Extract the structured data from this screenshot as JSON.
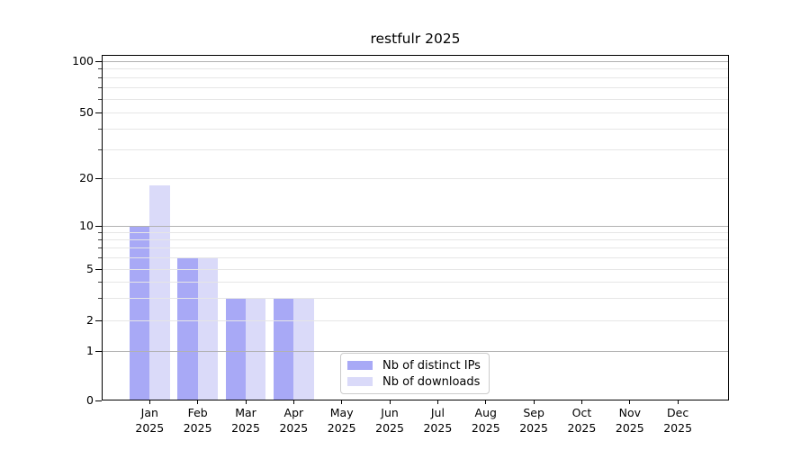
{
  "chart_data": {
    "type": "bar",
    "title": "restfulr 2025",
    "categories": [
      "Jan 2025",
      "Feb 2025",
      "Mar 2025",
      "Apr 2025",
      "May 2025",
      "Jun 2025",
      "Jul 2025",
      "Aug 2025",
      "Sep 2025",
      "Oct 2025",
      "Nov 2025",
      "Dec 2025"
    ],
    "series": [
      {
        "name": "Nb of distinct IPs",
        "color": "#a8a9f6",
        "values": [
          10,
          6,
          3,
          3,
          0,
          0,
          0,
          0,
          0,
          0,
          0,
          0
        ]
      },
      {
        "name": "Nb of downloads",
        "color": "#dadaf9",
        "values": [
          18,
          6,
          3,
          3,
          0,
          0,
          0,
          0,
          0,
          0,
          0,
          0
        ]
      }
    ],
    "xlabel": "",
    "ylabel": "",
    "y_scale": "symlog",
    "y_ticks_labeled": [
      0,
      1,
      2,
      5,
      10,
      20,
      50,
      100
    ],
    "ylim": [
      0,
      110
    ],
    "grid": "horizontal",
    "legend_position": "bottom-center-inside"
  },
  "colors": {
    "bar_distinct_ips": "#a8a9f6",
    "bar_downloads": "#dadaf9",
    "grid_major": "#b1b1b1",
    "grid_minor": "#e6e6e6",
    "spine": "#000000",
    "legend_border": "#cccccc",
    "text": "#000000"
  }
}
